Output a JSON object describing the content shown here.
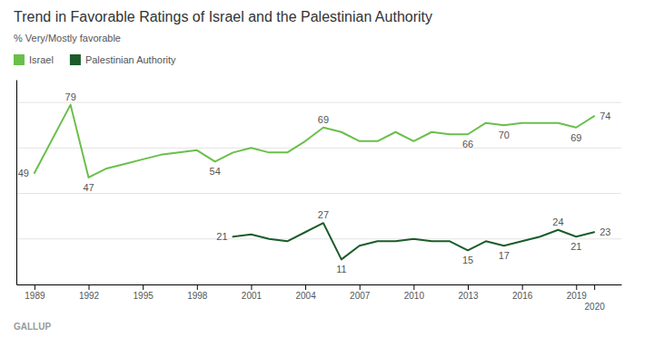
{
  "chart_data": {
    "type": "line",
    "title": "Trend in Favorable Ratings of Israel and the Palestinian Authority",
    "subtitle": "% Very/Mostly favorable",
    "caption": "GALLUP",
    "xlim": [
      1988.0,
      2021.5
    ],
    "xticks": [
      1989,
      1992,
      1995,
      1998,
      2001,
      2004,
      2007,
      2010,
      2013,
      2016,
      2019,
      2020
    ],
    "ylim": [
      0,
      90
    ],
    "yticks": [
      20,
      40,
      60,
      80
    ],
    "grid": true,
    "tick_labels": "x",
    "legend": "top-left",
    "series": [
      {
        "name": "Israel",
        "color": "#6abf4b",
        "x": [
          1989,
          1991,
          1992,
          1993,
          1994,
          1995,
          1996,
          1997,
          1998,
          1999,
          2000,
          2001,
          2002,
          2003,
          2004,
          2005,
          2006,
          2007,
          2008,
          2009,
          2010,
          2011,
          2012,
          2013,
          2014,
          2015,
          2016,
          2017,
          2018,
          2019,
          2020
        ],
        "values": [
          49,
          79,
          47,
          51,
          53,
          55,
          57,
          58,
          59,
          54,
          58,
          60,
          58,
          58,
          63,
          69,
          67,
          63,
          63,
          67,
          63,
          67,
          66,
          66,
          71,
          70,
          71,
          71,
          71,
          69,
          74
        ],
        "annotations": [
          {
            "x": 1989,
            "y": 49,
            "label": "49"
          },
          {
            "x": 1991,
            "y": 79,
            "label": "79"
          },
          {
            "x": 1992,
            "y": 47,
            "label": "47"
          },
          {
            "x": 1999,
            "y": 54,
            "label": "54"
          },
          {
            "x": 2005,
            "y": 69,
            "label": "69"
          },
          {
            "x": 2013,
            "y": 66,
            "label": "66"
          },
          {
            "x": 2015,
            "y": 70,
            "label": "70"
          },
          {
            "x": 2019,
            "y": 69,
            "label": "69"
          },
          {
            "x": 2020,
            "y": 74,
            "label": "74"
          }
        ]
      },
      {
        "name": "Palestinian Authority",
        "color": "#1a5c2a",
        "x": [
          2000,
          2001,
          2002,
          2003,
          2004,
          2005,
          2006,
          2007,
          2008,
          2009,
          2010,
          2011,
          2012,
          2013,
          2014,
          2015,
          2016,
          2017,
          2018,
          2019,
          2020
        ],
        "values": [
          21,
          22,
          20,
          19,
          23,
          27,
          11,
          17,
          19,
          19,
          20,
          19,
          19,
          15,
          19,
          17,
          19,
          21,
          24,
          21,
          23
        ],
        "annotations": [
          {
            "x": 2000,
            "y": 21,
            "label": "21"
          },
          {
            "x": 2005,
            "y": 27,
            "label": "27"
          },
          {
            "x": 2006,
            "y": 11,
            "label": "11"
          },
          {
            "x": 2013,
            "y": 15,
            "label": "15"
          },
          {
            "x": 2015,
            "y": 17,
            "label": "17"
          },
          {
            "x": 2018,
            "y": 24,
            "label": "24"
          },
          {
            "x": 2019,
            "y": 21,
            "label": "21"
          },
          {
            "x": 2020,
            "y": 23,
            "label": "23"
          }
        ]
      }
    ]
  }
}
